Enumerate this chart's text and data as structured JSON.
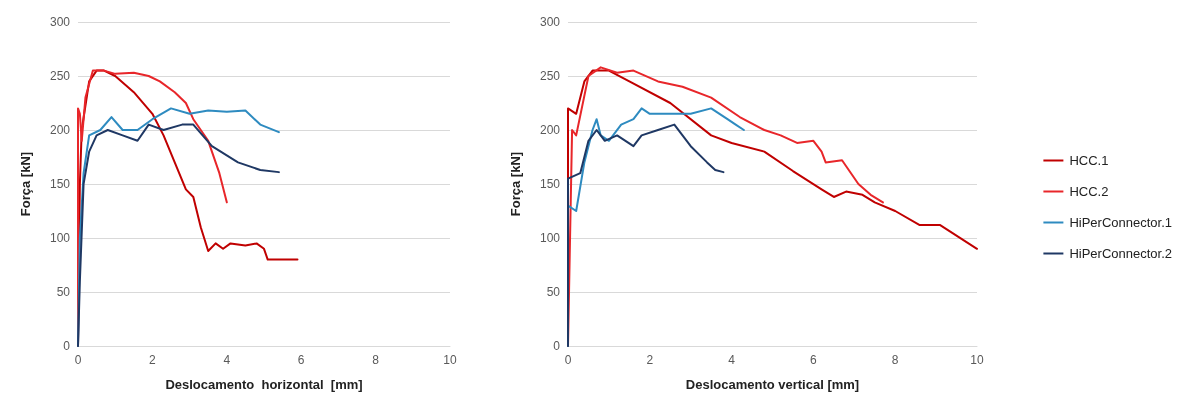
{
  "chart_data": [
    {
      "type": "line",
      "xlabel": "Deslocamento  horizontal  [mm]",
      "ylabel": "Força [kN]",
      "xlim": [
        0,
        10
      ],
      "xticks": [
        0,
        2,
        4,
        6,
        8,
        10
      ],
      "ylim": [
        0,
        300
      ],
      "yticks": [
        0,
        50,
        100,
        150,
        200,
        250,
        300
      ],
      "grid": "y",
      "legend": false,
      "marker": "none",
      "line_style": "solid",
      "series": [
        {
          "color": "#c00000",
          "x": [
            0,
            0.05,
            0.1,
            0.3,
            0.5,
            0.7,
            1.0,
            1.5,
            2.0,
            2.3,
            2.6,
            2.9,
            3.1,
            3.3,
            3.5,
            3.7,
            3.9,
            4.1,
            4.5,
            4.8,
            5.0,
            5.1,
            5.9
          ],
          "values": [
            0,
            150,
            200,
            245,
            255,
            255,
            250,
            235,
            215,
            195,
            170,
            145,
            138,
            110,
            88,
            95,
            90,
            95,
            93,
            95,
            90,
            80,
            80
          ]
        },
        {
          "color": "#e8262a",
          "x": [
            0,
            0,
            0.05,
            0.1,
            0.2,
            0.4,
            0.7,
            1.0,
            1.5,
            1.9,
            2.2,
            2.6,
            2.9,
            3.1,
            3.3,
            3.5,
            3.6,
            3.8,
            4.0
          ],
          "values": [
            0,
            220,
            215,
            190,
            230,
            255,
            255,
            252,
            253,
            250,
            245,
            235,
            225,
            210,
            200,
            190,
            180,
            160,
            133
          ]
        },
        {
          "color": "#2e8bc0",
          "x": [
            0,
            0.05,
            0.15,
            0.3,
            0.6,
            0.9,
            1.2,
            1.6,
            2.0,
            2.5,
            3.0,
            3.5,
            4.0,
            4.5,
            4.9,
            5.4
          ],
          "values": [
            0,
            100,
            160,
            195,
            200,
            212,
            200,
            200,
            210,
            220,
            215,
            218,
            217,
            218,
            205,
            198
          ]
        },
        {
          "color": "#1f3864",
          "x": [
            0,
            0.05,
            0.15,
            0.3,
            0.5,
            0.8,
            1.2,
            1.6,
            1.9,
            2.3,
            2.8,
            3.1,
            3.6,
            4.3,
            4.9,
            5.4
          ],
          "values": [
            0,
            60,
            150,
            180,
            195,
            200,
            195,
            190,
            205,
            200,
            205,
            205,
            185,
            170,
            163,
            161
          ]
        }
      ]
    },
    {
      "type": "line",
      "xlabel": "Deslocamento vertical [mm]",
      "ylabel": "Força [kN]",
      "xlim": [
        0,
        10
      ],
      "xticks": [
        0,
        2,
        4,
        6,
        8,
        10
      ],
      "ylim": [
        0,
        300
      ],
      "yticks": [
        0,
        50,
        100,
        150,
        200,
        250,
        300
      ],
      "grid": "y",
      "legend": "right",
      "marker": "none",
      "line_style": "solid",
      "series": [
        {
          "name": "HCC.1",
          "color": "#c00000",
          "x": [
            0,
            0,
            0.2,
            0.4,
            0.6,
            1.0,
            1.5,
            2.5,
            3.5,
            4.0,
            4.8,
            5.5,
            6.2,
            6.5,
            6.8,
            7.2,
            7.5,
            8.0,
            8.6,
            9.1,
            10
          ],
          "values": [
            0,
            220,
            215,
            245,
            255,
            255,
            245,
            225,
            195,
            188,
            180,
            162,
            145,
            138,
            143,
            140,
            133,
            125,
            112,
            112,
            90
          ]
        },
        {
          "name": "HCC.2",
          "color": "#e8262a",
          "x": [
            0,
            0.1,
            0.2,
            0.5,
            0.8,
            1.2,
            1.6,
            2.2,
            2.8,
            3.5,
            4.2,
            4.8,
            5.2,
            5.6,
            6.0,
            6.2,
            6.3,
            6.7,
            7.1,
            7.4,
            7.7
          ],
          "values": [
            0,
            200,
            195,
            250,
            258,
            253,
            255,
            245,
            240,
            230,
            212,
            200,
            195,
            188,
            190,
            180,
            170,
            172,
            150,
            140,
            133
          ]
        },
        {
          "name": "HiPerConnector.1",
          "color": "#2e8bc0",
          "x": [
            0,
            0,
            0.2,
            0.4,
            0.6,
            0.7,
            0.8,
            1.0,
            1.3,
            1.6,
            1.8,
            2.0,
            3.0,
            3.5,
            3.9,
            4.1,
            4.3
          ],
          "values": [
            0,
            130,
            125,
            170,
            200,
            210,
            195,
            190,
            205,
            210,
            220,
            215,
            215,
            220,
            210,
            205,
            200
          ]
        },
        {
          "name": "HiPerConnector.2",
          "color": "#1f3864",
          "x": [
            0,
            0,
            0.3,
            0.5,
            0.7,
            0.9,
            1.2,
            1.6,
            1.8,
            2.2,
            2.6,
            3.0,
            3.4,
            3.6,
            3.8
          ],
          "values": [
            0,
            155,
            160,
            190,
            200,
            190,
            195,
            185,
            195,
            200,
            205,
            185,
            170,
            163,
            161
          ]
        }
      ]
    }
  ]
}
